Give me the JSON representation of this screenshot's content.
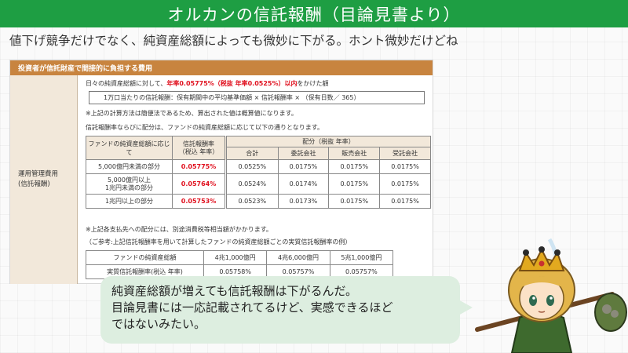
{
  "header": {
    "title": "オルカンの信託報酬（目論見書より）"
  },
  "subtitle": "値下げ競争だけでなく、純資産総額によっても微妙に下がる。ホント微妙だけどね",
  "panel": {
    "heading": "投資者が信託財産で間接的に負担する費用",
    "side_label": "運用管理費用\n(信託報酬)",
    "line1_prefix": "日々の純資産総額に対して、",
    "line1_highlight": "年率0.05775%（税抜 年率0.0525%）以内",
    "line1_suffix": "をかけた額",
    "formula": "1万口当たりの信託報酬：保有期間中の平均基準価額 × 信託報酬率 × （保有日数／ 365）",
    "note1": "※上記の計算方法は簡便法であるため、算出された値は概算値になります。",
    "note2": "信託報酬率ならびに配分は、ファンドの純資産総額に応じて以下の通りとなります。",
    "note3": "※上記各支払先への配分には、別途消費税等相当額がかかります。",
    "note4": "（ご参考:上記信託報酬率を用いて計算したファンドの純資産総額ごとの実質信託報酬率の例）"
  },
  "fee_table": {
    "col_assets": "ファンドの純資産総額に応じて",
    "col_rate": "信託報酬率\n（税込 年率）",
    "col_alloc": "配分（税抜 年率）",
    "sub_headers": [
      "合計",
      "委託会社",
      "販売会社",
      "受託会社"
    ],
    "rows": [
      {
        "assets": "5,000億円未満の部分",
        "rate": "0.05775%",
        "alloc": [
          "0.0525%",
          "0.0175%",
          "0.0175%",
          "0.0175%"
        ]
      },
      {
        "assets": "5,000億円以上\n1兆円未満の部分",
        "rate": "0.05764%",
        "alloc": [
          "0.0524%",
          "0.0174%",
          "0.0175%",
          "0.0175%"
        ]
      },
      {
        "assets": "1兆円以上の部分",
        "rate": "0.05753%",
        "alloc": [
          "0.0523%",
          "0.0173%",
          "0.0175%",
          "0.0175%"
        ]
      }
    ]
  },
  "ref_table": {
    "rows": [
      [
        "ファンドの純資産総額",
        "4兆1,000億円",
        "4兆6,000億円",
        "5兆1,000億円"
      ],
      [
        "実質信託報酬率(税込 年率)",
        "0.05758%",
        "0.05757%",
        "0.05757%"
      ]
    ]
  },
  "speech": {
    "text": "純資産総額が増えても信託報酬は下がるんだ。\n目論見書には一応記載されてるけど、実感できるほど\nではないみたい。"
  },
  "colors": {
    "title_bar": "#1e9e43",
    "panel_head": "#c8843f",
    "highlight_red": "#e0101e",
    "speech_bg": "#ddeee0"
  }
}
